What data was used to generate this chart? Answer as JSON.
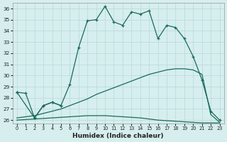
{
  "xlabel": "Humidex (Indice chaleur)",
  "bg_color": "#d6eeee",
  "line_color": "#1a6b5a",
  "grid_color": "#b8d8d8",
  "xlim": [
    -0.5,
    23.5
  ],
  "ylim": [
    25.7,
    36.5
  ],
  "yticks": [
    26,
    27,
    28,
    29,
    30,
    31,
    32,
    33,
    34,
    35,
    36
  ],
  "xticks": [
    0,
    1,
    2,
    3,
    4,
    5,
    6,
    7,
    8,
    9,
    10,
    11,
    12,
    13,
    14,
    15,
    16,
    17,
    18,
    19,
    20,
    21,
    22,
    23
  ],
  "line1_x": [
    0,
    1,
    2,
    3,
    4,
    5,
    6,
    7,
    8,
    9,
    10,
    11,
    12,
    13,
    14,
    15,
    16,
    17,
    18,
    19,
    20,
    21,
    22,
    23
  ],
  "line1_y": [
    28.5,
    28.4,
    26.2,
    27.3,
    27.6,
    27.3,
    29.2,
    32.5,
    34.9,
    35.0,
    36.2,
    34.8,
    34.5,
    35.7,
    35.5,
    35.8,
    33.3,
    34.5,
    34.3,
    33.3,
    31.7,
    29.6,
    26.8,
    26.0
  ],
  "line2_x": [
    0,
    2,
    3,
    4,
    5
  ],
  "line2_y": [
    28.5,
    26.2,
    27.3,
    27.6,
    27.3
  ],
  "line3_x": [
    0,
    1,
    2,
    3,
    4,
    5,
    6,
    7,
    8,
    9,
    10,
    11,
    12,
    13,
    14,
    15,
    16,
    17,
    18,
    19,
    20,
    21,
    22,
    23
  ],
  "line3_y": [
    26.2,
    26.3,
    26.4,
    26.6,
    26.8,
    27.0,
    27.3,
    27.6,
    27.9,
    28.3,
    28.6,
    28.9,
    29.2,
    29.5,
    29.8,
    30.1,
    30.3,
    30.5,
    30.6,
    30.6,
    30.5,
    30.1,
    26.5,
    25.8
  ],
  "line4_x": [
    0,
    1,
    2,
    3,
    4,
    5,
    6,
    7,
    8,
    9,
    10,
    11,
    12,
    13,
    14,
    15,
    16,
    17,
    18,
    19,
    20,
    21,
    22,
    23
  ],
  "line4_y": [
    26.0,
    26.05,
    26.1,
    26.15,
    26.2,
    26.25,
    26.3,
    26.35,
    26.4,
    26.4,
    26.4,
    26.35,
    26.3,
    26.25,
    26.2,
    26.1,
    26.0,
    25.95,
    25.9,
    25.85,
    25.8,
    25.75,
    25.75,
    25.75
  ]
}
